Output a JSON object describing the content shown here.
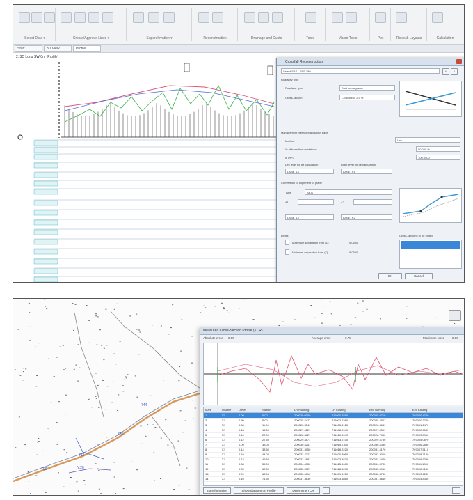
{
  "shot1": {
    "ribbon": {
      "groups": [
        "Select Data ▾",
        "Create/Approve Lines ▾",
        "Superelevation ▾",
        "Reconstruction",
        "Drainage and Ducts",
        "Tools",
        "Macro Tools",
        "Plot",
        "Roles & Layouts",
        "Calculation"
      ]
    },
    "tabs": [
      "Start",
      "3D View",
      "Profile"
    ],
    "doc_title": "2: 3D Long SW 0m (Profile)",
    "dialog": {
      "title": "Crossfall Reconstruction",
      "dropdown_top": "Select SBS - SBS 180",
      "section_label": "Roadway type",
      "roadway_type_label": "Roadway type",
      "roadway_type_value": "Dual carriageway",
      "cross_section_label": "Cross-section",
      "cross_section_value": "Crossfall of 2.5 %",
      "method_section": "Management method/Navigation base",
      "method_label": "Method",
      "method_value": "Left",
      "pct_label": "% of transition on stations",
      "pct_value": "50.000 %",
      "ln_label": "ln (m²)",
      "ln_value": "100.0000",
      "left_calc_label": "Left level for de calculation",
      "left_calc_value": "LANE_L1",
      "right_calc_label": "Right level for de calculation",
      "right_calc_value": "LANE_R1",
      "conversion_label": "Conversion of alignment to grade",
      "type_label": "Type",
      "type_value": "As-is",
      "a1_label": "A1",
      "a2_label": "A2",
      "left_calc2_value": "LANE_L2",
      "right_calc2_value": "LANE_R2",
      "limits_label": "Limits",
      "max_sep_label": "Maximum separation from (Σ)",
      "max_sep_value": "0.0500",
      "min_sep_label": "Minimum separation from (Σ)",
      "min_sep_value": "0.0500",
      "cases_label": "Cross-sections to be edited",
      "ok_label": "OK",
      "cancel_label": "Cancel"
    }
  },
  "shot2": {
    "window": {
      "title": "Measured Cross-Section Profile (TCR)",
      "stat1_label": "Absolute error",
      "stat1_value": "0.05",
      "stat2_label": "Average error",
      "stat2_value": "0.78",
      "stat3_label": "Maximum error",
      "stat3_value": "0.80",
      "columns": [
        "Mark",
        "Disable",
        "Offset",
        "Station",
        "LR Northing",
        "LR Easting",
        "Ext. Northing",
        "Ext. Easting"
      ],
      "rows": [
        [
          "1",
          "☑",
          "0.00",
          "0.00",
          "200020.0000",
          "711000.7880",
          "200025.9710",
          "707000.4700"
        ],
        [
          "2",
          "☐",
          "0.30",
          "5.00",
          "200025.3477",
          "711002.7260",
          "200025.4577",
          "707000.3740"
        ],
        [
          "3",
          "☐",
          "0.34",
          "11.00",
          "200026.3541",
          "711005.4120",
          "200026.3631",
          "707001.2470"
        ],
        [
          "4",
          "☐",
          "0.18",
          "16.50",
          "200027.4121",
          "711008.0940",
          "200027.4591",
          "707002.6030"
        ],
        [
          "5",
          "☐",
          "0.10",
          "22.00",
          "200028.3821",
          "711010.5940",
          "200028.7080",
          "707003.8950"
        ],
        [
          "6",
          "☐",
          "0.12",
          "27.50",
          "200029.4871",
          "711013.2100",
          "200029.3750",
          "707005.0870"
        ],
        [
          "7",
          "☐",
          "0.09",
          "33.00",
          "200030.4251",
          "711015.7300",
          "200030.4380",
          "707006.2830"
        ],
        [
          "8",
          "☐",
          "0.14",
          "38.50",
          "200031.3950",
          "711018.2220",
          "200031.4170",
          "707007.5110"
        ],
        [
          "9",
          "☐",
          "0.10",
          "44.00",
          "200032.4721",
          "711020.8960",
          "200032.3060",
          "707008.7190"
        ],
        [
          "10",
          "☐",
          "0.12",
          "49.50",
          "200033.4181",
          "711023.3870",
          "200033.4420",
          "707009.9030"
        ],
        [
          "11",
          "☐",
          "0.08",
          "55.00",
          "200034.4050",
          "711025.9600",
          "200034.3780",
          "707011.1890"
        ],
        [
          "12",
          "☐",
          "0.05",
          "60.50",
          "200035.3721",
          "711028.5070",
          "200035.3960",
          "707012.4130"
        ],
        [
          "13",
          "☐",
          "0.09",
          "66.00",
          "200036.4010",
          "711031.0450",
          "200036.3780",
          "707013.6240"
        ],
        [
          "14",
          "☐",
          "0.10",
          "71.50",
          "200037.3630",
          "711033.5860",
          "200037.3640",
          "707014.8360"
        ]
      ],
      "btn1": "Transformation",
      "btn2": "Show diagram on Profile",
      "btn3": "Determine TCR"
    },
    "map_labels": [
      "744",
      "736",
      "712",
      "706",
      "Y.20"
    ]
  }
}
